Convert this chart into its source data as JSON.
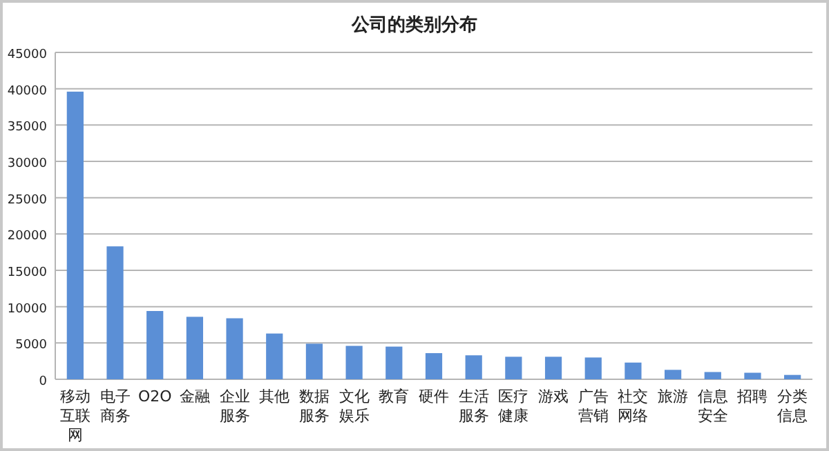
{
  "chart_data": {
    "type": "bar",
    "title": "公司的类别分布",
    "categories": [
      "移动互联网",
      "电子商务",
      "O2O",
      "金融",
      "企业服务",
      "其他",
      "数据服务",
      "文化娱乐",
      "教育",
      "硬件",
      "生活服务",
      "医疗健康",
      "游戏",
      "广告营销",
      "社交网络",
      "旅游",
      "信息安全",
      "招聘",
      "分类信息"
    ],
    "values": [
      39600,
      18300,
      9400,
      8600,
      8400,
      6300,
      4900,
      4600,
      4500,
      3600,
      3300,
      3100,
      3100,
      3000,
      2300,
      1300,
      1000,
      900,
      600
    ],
    "color": "#5b8fd6",
    "ylim": [
      0,
      45000
    ],
    "yticks": [
      0,
      5000,
      10000,
      15000,
      20000,
      25000,
      30000,
      35000,
      40000,
      45000
    ],
    "grid": "y"
  }
}
